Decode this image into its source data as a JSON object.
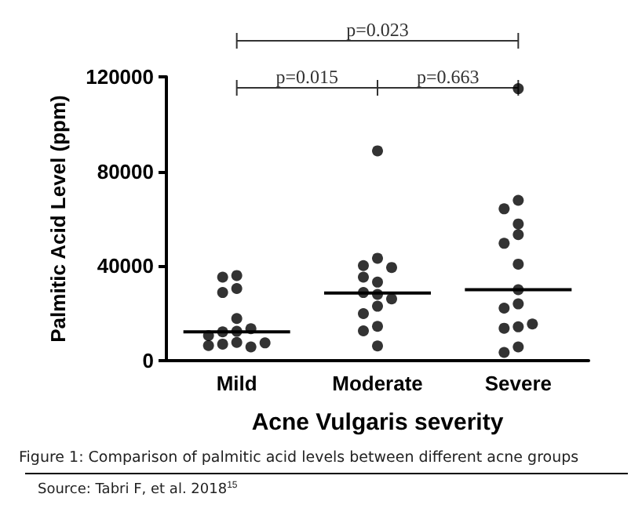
{
  "chart_data": {
    "type": "scatter",
    "xlabel": "Acne Vulgaris severity",
    "ylabel": "Palmitic Acid Level (ppm)",
    "categories": [
      "Mild",
      "Moderate",
      "Severe"
    ],
    "ylim": [
      0,
      120000
    ],
    "yticks": [
      0,
      40000,
      80000,
      120000
    ],
    "grid": false,
    "series": [
      {
        "marker": "circle",
        "color": "#000000",
        "x": [
          "Mild",
          "Mild",
          "Mild",
          "Mild",
          "Mild",
          "Mild",
          "Mild",
          "Mild",
          "Mild",
          "Mild",
          "Mild",
          "Mild",
          "Mild",
          "Mild"
        ],
        "values": [
          36000,
          35300,
          30500,
          28800,
          17800,
          12400,
          12200,
          13500,
          10600,
          7700,
          7000,
          5800,
          6400,
          7500
        ]
      },
      {
        "marker": "circle",
        "color": "#000000",
        "x": [
          "Moderate",
          "Moderate",
          "Moderate",
          "Moderate",
          "Moderate",
          "Moderate",
          "Moderate",
          "Moderate",
          "Moderate",
          "Moderate",
          "Moderate",
          "Moderate",
          "Moderate",
          "Moderate"
        ],
        "values": [
          88700,
          43300,
          40200,
          39400,
          33200,
          35300,
          28000,
          28800,
          26100,
          23000,
          19900,
          14500,
          12600,
          6200
        ]
      },
      {
        "marker": "circle",
        "color": "#000000",
        "x": [
          "Severe",
          "Severe",
          "Severe",
          "Severe",
          "Severe",
          "Severe",
          "Severe",
          "Severe",
          "Severe",
          "Severe",
          "Severe",
          "Severe",
          "Severe",
          "Severe",
          "Severe"
        ],
        "values": [
          115000,
          67800,
          64200,
          57800,
          53300,
          49600,
          40800,
          30000,
          24000,
          22200,
          14300,
          13700,
          15500,
          5800,
          3500
        ]
      },
      {
        "type": "box",
        "color": "#000000",
        "boxes": [
          {
            "low": 12200,
            "q1": 12200,
            "median": 12200,
            "q3": 12200,
            "high": 12200
          },
          {
            "low": 28600,
            "q1": 28600,
            "median": 28600,
            "q3": 28600,
            "high": 28600
          },
          {
            "low": 30000,
            "q1": 30000,
            "median": 30000,
            "q3": 30000,
            "high": 30000
          }
        ]
      }
    ],
    "annotations": [
      "p=0.015",
      "p=0.663",
      "p=0.023",
      "Figure 1: Comparison of palmitic acid levels between different acne groups",
      "Source: Tabri F, et al. 2018$^{15}$"
    ]
  }
}
